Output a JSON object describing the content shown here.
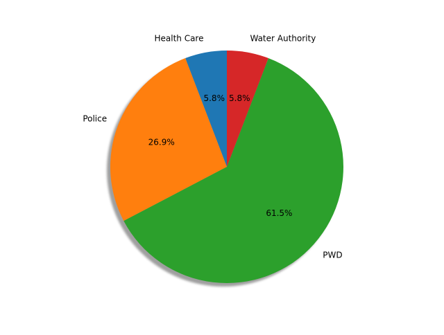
{
  "chart_data": {
    "type": "pie",
    "categories": [
      "Health Care",
      "Police",
      "PWD",
      "Water Authority"
    ],
    "values": [
      5.8,
      26.9,
      61.5,
      5.8
    ],
    "percent_labels": [
      "5.8%",
      "26.9%",
      "61.5%",
      "5.8%"
    ],
    "colors": [
      "#1f77b4",
      "#ff7f0e",
      "#2ca02c",
      "#d62728"
    ],
    "start_angle_deg": 90,
    "direction": "counterclockwise",
    "shadow": true,
    "title": ""
  }
}
